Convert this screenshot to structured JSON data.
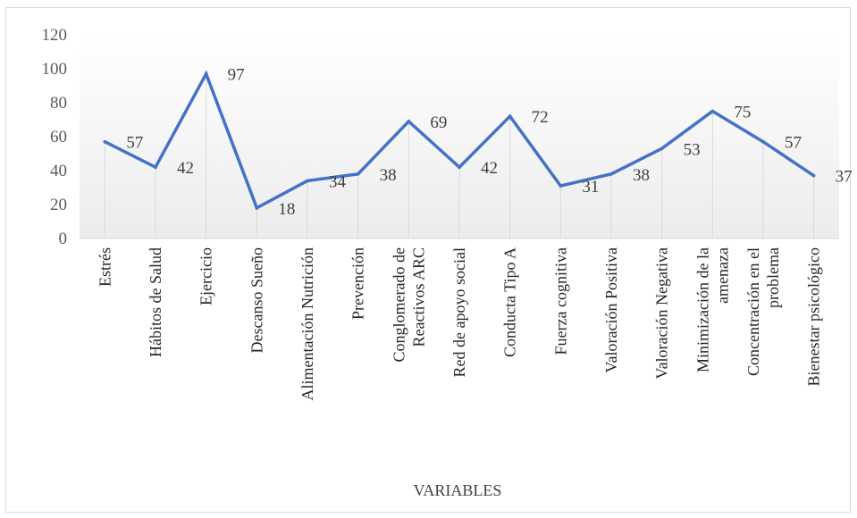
{
  "chart_data": {
    "type": "line",
    "title": "",
    "xlabel": "VARIABLES",
    "ylabel": "",
    "ylim": [
      0,
      120
    ],
    "yticks": [
      0,
      20,
      40,
      60,
      80,
      100,
      120
    ],
    "grid": "vertical drop lines",
    "legend": "none",
    "line_color": "#4472c4",
    "categories": [
      [
        "Estrés"
      ],
      [
        "Hábitos de Salud"
      ],
      [
        "Ejercicio"
      ],
      [
        "Descanso Sueño"
      ],
      [
        "Alimentación Nutrición"
      ],
      [
        "Prevención"
      ],
      [
        "Conglomerado de",
        "Reactivos ARC"
      ],
      [
        "Red de apoyo social"
      ],
      [
        "Conducta Tipo A"
      ],
      [
        "Fuerza cognitiva"
      ],
      [
        "Valoración Positiva"
      ],
      [
        "Valoración Negativa"
      ],
      [
        "Minimización de la",
        "amenaza"
      ],
      [
        "Concentración en el",
        "problema"
      ],
      [
        "Bienestar psicológico"
      ]
    ],
    "series": [
      {
        "values": [
          57,
          42,
          97,
          18,
          34,
          38,
          69,
          42,
          72,
          31,
          38,
          53,
          75,
          57,
          37
        ]
      }
    ]
  }
}
